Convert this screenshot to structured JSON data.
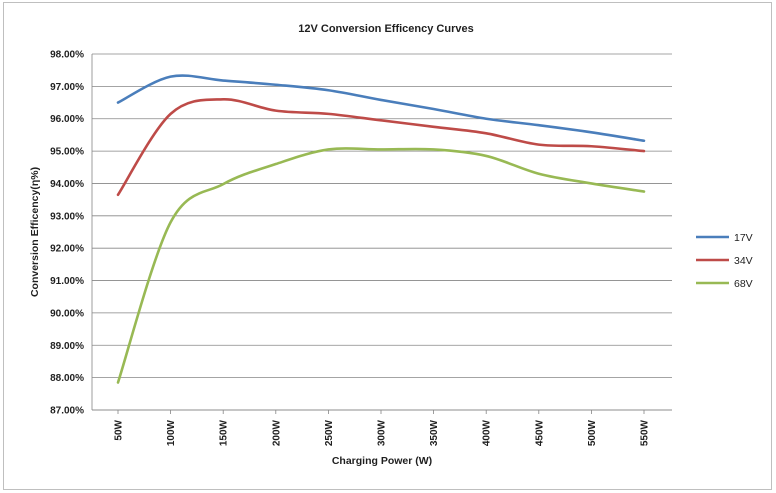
{
  "chart_data": {
    "type": "line",
    "title": "12V  Conversion Efficency Curves",
    "xlabel": "Charging  Power  (W)",
    "ylabel": "Conversion Efficency(η%)",
    "categories": [
      "50W",
      "100W",
      "150W",
      "200W",
      "250W",
      "300W",
      "350W",
      "400W",
      "450W",
      "500W",
      "550W"
    ],
    "ylim": [
      87.0,
      98.0
    ],
    "yticks": [
      87.0,
      88.0,
      89.0,
      90.0,
      91.0,
      92.0,
      93.0,
      94.0,
      95.0,
      96.0,
      97.0,
      98.0
    ],
    "ytick_labels": [
      "87.00%",
      "88.00%",
      "89.00%",
      "90.00%",
      "91.00%",
      "92.00%",
      "93.00%",
      "94.00%",
      "95.00%",
      "96.00%",
      "97.00%",
      "98.00%"
    ],
    "grid": true,
    "legend_position": "right",
    "series": [
      {
        "name": "17V",
        "color": "#4a7ebb",
        "values": [
          96.5,
          97.3,
          97.18,
          97.05,
          96.88,
          96.58,
          96.3,
          96.0,
          95.8,
          95.58,
          95.32
        ]
      },
      {
        "name": "34V",
        "color": "#be4b48",
        "values": [
          93.65,
          96.15,
          96.6,
          96.25,
          96.15,
          95.95,
          95.75,
          95.55,
          95.2,
          95.15,
          95.0
        ]
      },
      {
        "name": "68V",
        "color": "#98b954",
        "values": [
          87.85,
          92.8,
          93.98,
          94.6,
          95.05,
          95.05,
          95.05,
          94.85,
          94.3,
          94.0,
          93.75
        ]
      }
    ]
  }
}
